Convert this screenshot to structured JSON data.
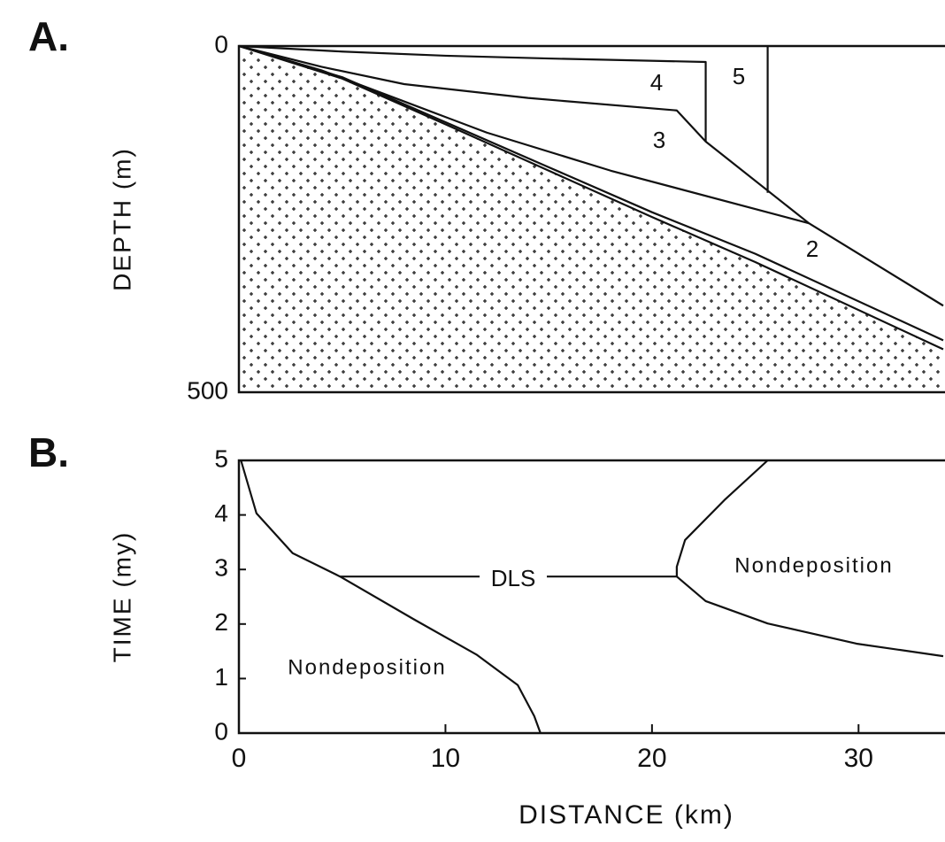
{
  "chart_data": [
    {
      "type": "line",
      "panel_label": "A.",
      "ylabel": "DEPTH (m)",
      "xlim": [
        0,
        34.1
      ],
      "ylim": [
        0,
        500
      ],
      "y_inverted": true,
      "yticks": [
        0,
        500
      ],
      "series": [
        {
          "color": "#111111",
          "x": [
            0,
            5,
            10,
            15,
            22.6,
            22.6
          ],
          "values": [
            0,
            8,
            14,
            18,
            23,
            138
          ]
        },
        {
          "color": "#111111",
          "x": [
            0,
            4,
            8,
            14,
            21.2,
            22.6,
            27.6,
            34.1
          ],
          "values": [
            0,
            30,
            55,
            75,
            93,
            138,
            256,
            375
          ]
        },
        {
          "color": "#111111",
          "x": [
            0,
            4,
            8,
            12,
            18,
            27.6
          ],
          "values": [
            0,
            35,
            80,
            125,
            180,
            256
          ]
        },
        {
          "color": "#111111",
          "x": [
            0,
            5,
            10,
            15,
            20,
            25,
            34.1
          ],
          "values": [
            0,
            45,
            110,
            175,
            240,
            300,
            425
          ]
        },
        {
          "color": "#111111",
          "x": [
            0,
            5,
            10,
            15,
            20,
            25,
            34.1
          ],
          "values": [
            0,
            47,
            113,
            180,
            247,
            312,
            438
          ],
          "dotted_fill": true
        },
        {
          "color": "#111111",
          "x": [
            25.6,
            25.6
          ],
          "values": [
            0,
            212
          ]
        }
      ],
      "annotations": [
        "2",
        "3",
        "4",
        "5"
      ]
    },
    {
      "type": "line",
      "panel_label": "B.",
      "ylabel": "TIME (my)",
      "xlabel": "DISTANCE (km)",
      "xlim": [
        0,
        34.1
      ],
      "xticks": [
        0,
        10,
        20,
        30
      ],
      "ylim": [
        0,
        5
      ],
      "yticks": [
        0,
        1,
        2,
        3,
        4,
        5
      ],
      "series": [
        {
          "color": "#111111",
          "x": [
            0.1,
            0.85,
            2.6,
            4.9,
            8.5,
            11.5,
            13.5,
            14.3,
            14.6
          ],
          "values": [
            5,
            4.03,
            3.3,
            2.87,
            2.08,
            1.44,
            0.88,
            0.31,
            0
          ]
        },
        {
          "color": "#111111",
          "x": [
            25.6,
            23.5,
            21.6,
            21.2,
            21.2,
            22.6,
            25.6,
            29.9,
            34.1
          ],
          "values": [
            5,
            4.27,
            3.54,
            3.05,
            2.87,
            2.42,
            2.01,
            1.64,
            1.41
          ]
        },
        {
          "color": "#111111",
          "x": [
            4.9,
            21.2
          ],
          "values": [
            2.87,
            2.87
          ]
        }
      ],
      "annotations": [
        "DLS",
        "Nondeposition",
        "Nondeposition"
      ]
    }
  ]
}
